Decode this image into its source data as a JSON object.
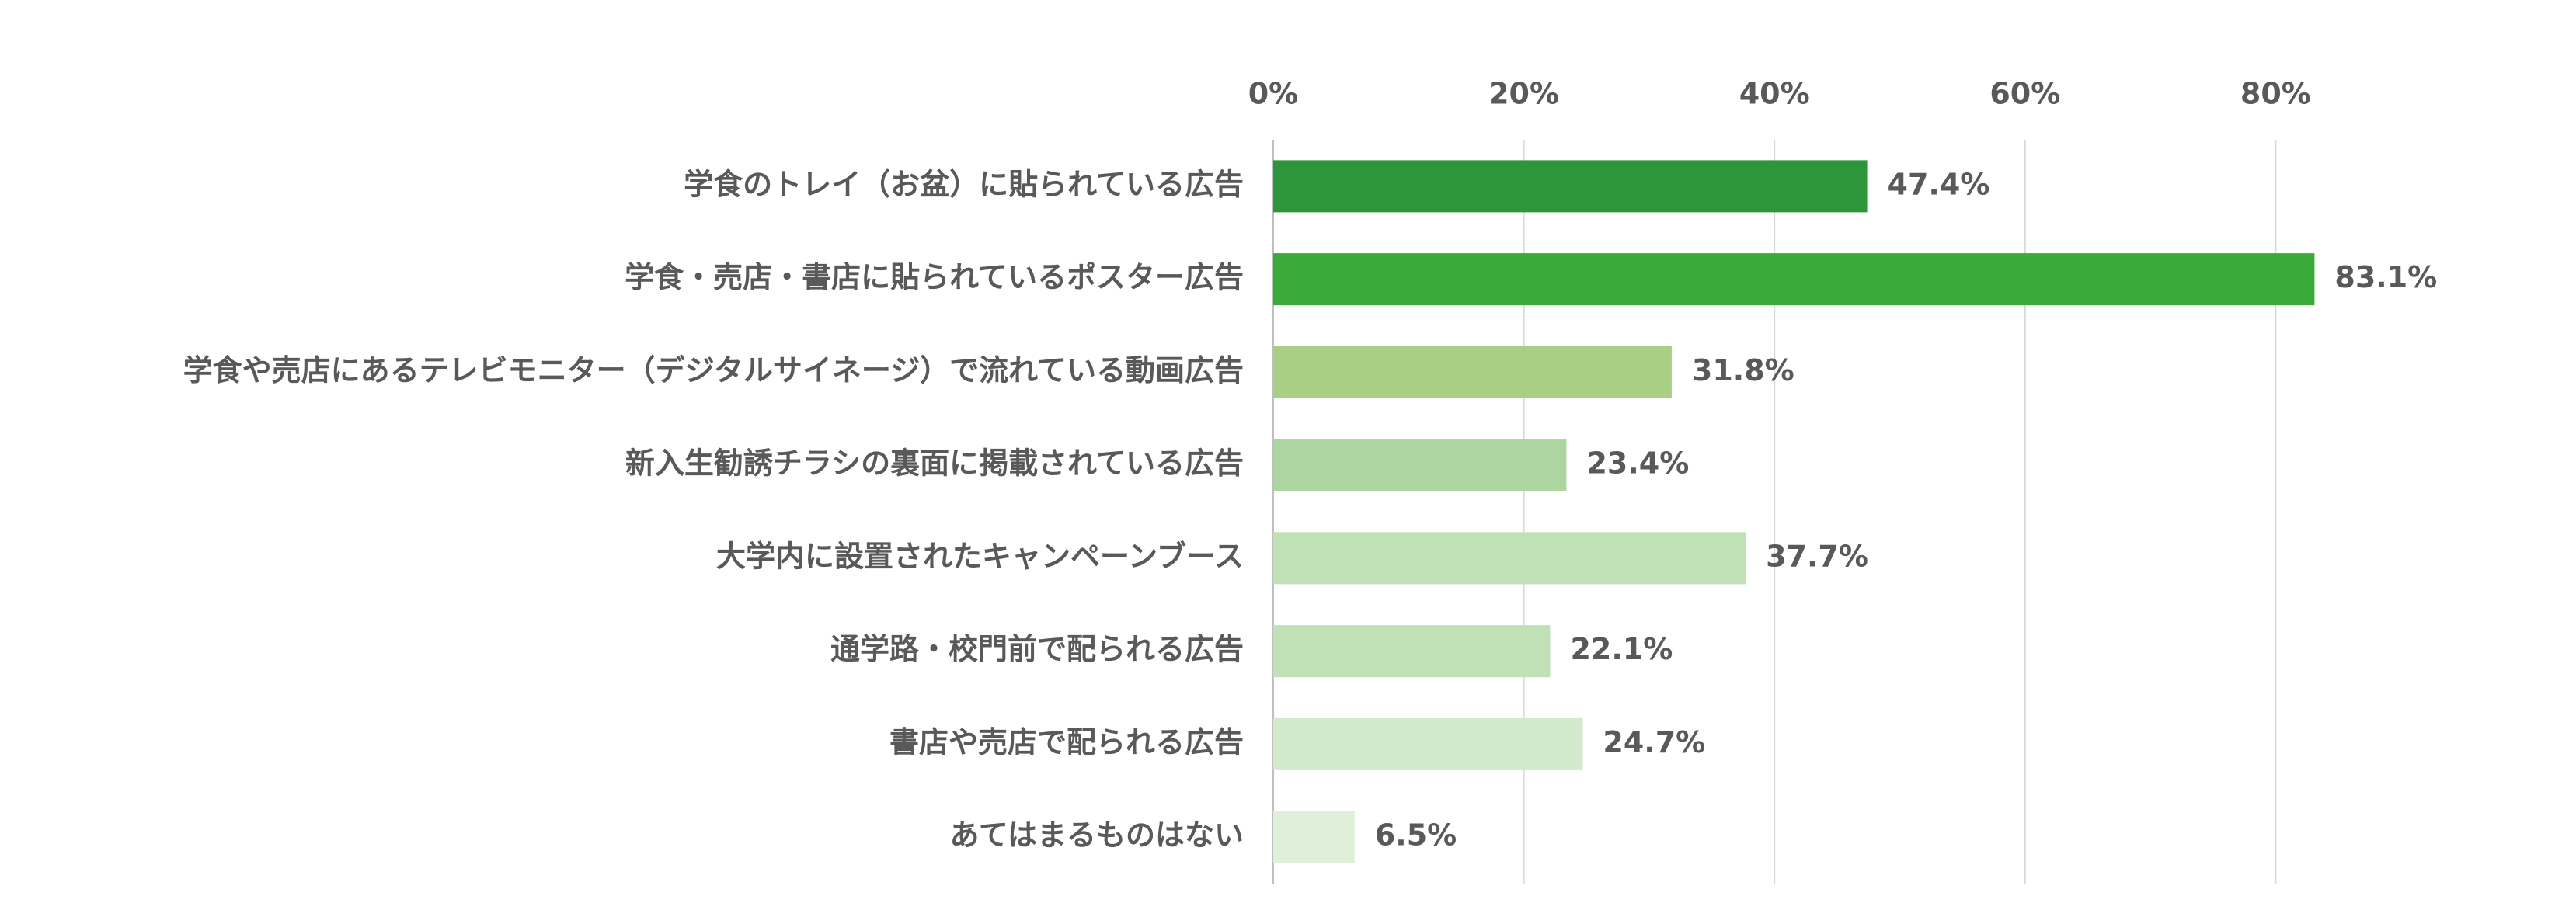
{
  "chart_data": {
    "type": "barh",
    "categories": [
      "学食のトレイ（お盆）に貼られている広告",
      "学食・売店・書店に貼られているポスター広告",
      "学食や売店にあるテレビモニター（デジタルサイネージ）で流れている動画広告",
      "新入生勧誘チラシの裏面に掲載されている広告",
      "大学内に設置されたキャンペーンブース",
      "通学路・校門前で配られる広告",
      "書店や売店で配られる広告",
      "あてはまるものはない"
    ],
    "values": [
      47.4,
      83.1,
      31.8,
      23.4,
      37.7,
      22.1,
      24.7,
      6.5
    ],
    "value_labels": [
      "47.4%",
      "83.1%",
      "31.8%",
      "23.4%",
      "37.7%",
      "22.1%",
      "24.7%",
      "6.5%"
    ],
    "colors": [
      "#2e963a",
      "#3aab38",
      "#a9cf84",
      "#add5a0",
      "#c0e0b5",
      "#c0e0b5",
      "#d2e9cc",
      "#dff0da"
    ],
    "xlim": [
      0,
      100
    ],
    "xticks": [
      {
        "value": 0,
        "label": "0%"
      },
      {
        "value": 20,
        "label": "20%"
      },
      {
        "value": 40,
        "label": "40%"
      },
      {
        "value": 60,
        "label": "60%"
      },
      {
        "value": 80,
        "label": "80%"
      }
    ],
    "grid": true
  }
}
